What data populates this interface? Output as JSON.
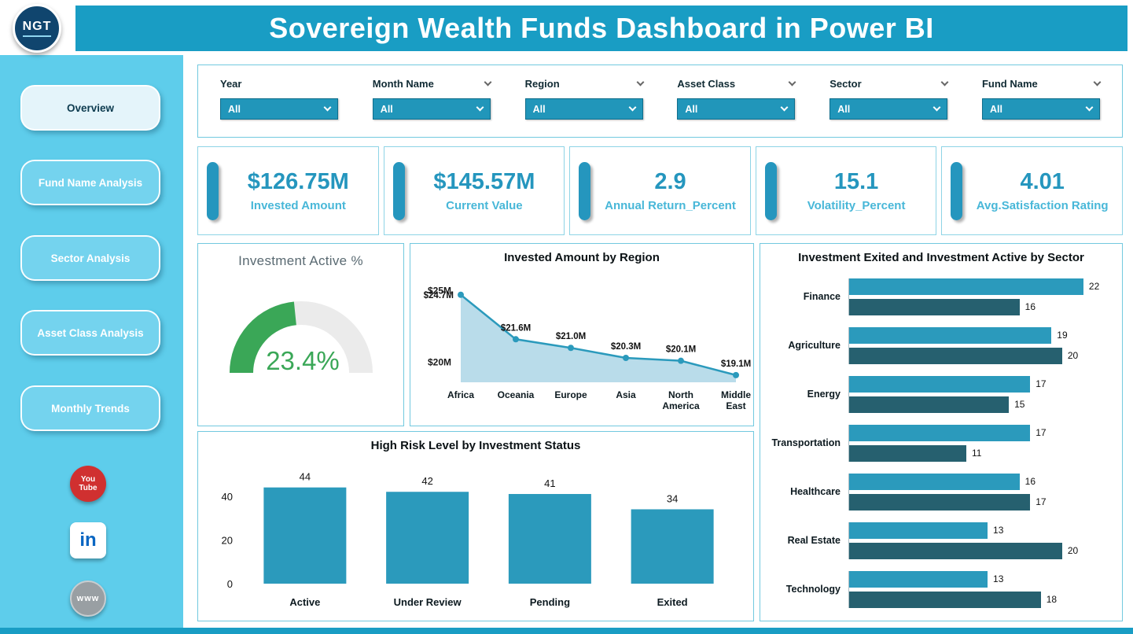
{
  "header": {
    "title": "Sovereign Wealth Funds Dashboard in Power BI",
    "logo": "NGT"
  },
  "sidebar": {
    "items": [
      {
        "label": "Overview",
        "active": true
      },
      {
        "label": "Fund Name Analysis",
        "active": false
      },
      {
        "label": "Sector Analysis",
        "active": false
      },
      {
        "label": "Asset Class Analysis",
        "active": false
      },
      {
        "label": "Monthly Trends",
        "active": false
      }
    ],
    "social": [
      {
        "name": "youtube",
        "lines": [
          "You",
          "Tube"
        ]
      },
      {
        "name": "linkedin",
        "text": "in"
      },
      {
        "name": "www",
        "text": "www"
      }
    ]
  },
  "filters": {
    "items": [
      {
        "label": "Year",
        "value": "All"
      },
      {
        "label": "Month Name",
        "value": "All"
      },
      {
        "label": "Region",
        "value": "All"
      },
      {
        "label": "Asset Class",
        "value": "All"
      },
      {
        "label": "Sector",
        "value": "All"
      },
      {
        "label": "Fund Name",
        "value": "All"
      }
    ]
  },
  "kpis": [
    {
      "value": "$126.75M",
      "label": "Invested Amount"
    },
    {
      "value": "$145.57M",
      "label": "Current Value"
    },
    {
      "value": "2.9",
      "label": "Annual Return_Percent"
    },
    {
      "value": "15.1",
      "label": "Volatility_Percent"
    },
    {
      "value": "4.01",
      "label": "Avg.Satisfaction Rating"
    }
  ],
  "colors": {
    "header_teal": "#199dc4",
    "sidebar_blue": "#5ecdeb",
    "accent_teal": "#2b9abc",
    "kpi_teal": "#2596be",
    "dark_teal": "#26606f",
    "gauge_green": "#3aa757"
  },
  "chart_data": [
    {
      "type": "gauge",
      "title": "Investment Active %",
      "value": 23.4,
      "display": "23.4%",
      "arc_color": "#3aa757",
      "track_color": "#ebebeb"
    },
    {
      "type": "area",
      "title": "Invested Amount by Region",
      "categories": [
        "Africa",
        "Oceania",
        "Europe",
        "Asia",
        "North America",
        "Middle East"
      ],
      "values": [
        24.7,
        21.6,
        21.0,
        20.3,
        20.1,
        19.1
      ],
      "point_labels": [
        "$24.7M",
        "$21.6M",
        "$21.0M",
        "$20.3M",
        "$20.1M",
        "$19.1M"
      ],
      "y_ticks": [
        {
          "label": "$25M",
          "value": 25
        },
        {
          "label": "$20M",
          "value": 20
        }
      ],
      "ylim": [
        18.6,
        25.4
      ],
      "line_color": "#2b9abc",
      "fill_color": "#b9dcea"
    },
    {
      "type": "bar",
      "title": "High Risk Level by Investment Status",
      "categories": [
        "Active",
        "Under Review",
        "Pending",
        "Exited"
      ],
      "values": [
        44,
        42,
        41,
        34
      ],
      "y_ticks": [
        0,
        20,
        40
      ],
      "ylim": [
        0,
        50
      ],
      "bar_color": "#2b9abc"
    },
    {
      "type": "hbar",
      "title": "Investment Exited and Investment Active by Sector",
      "categories": [
        "Finance",
        "Agriculture",
        "Energy",
        "Transportation",
        "Healthcare",
        "Real Estate",
        "Technology"
      ],
      "series": [
        {
          "name": "Investment Exited",
          "color": "#2b9abc",
          "values": [
            22,
            19,
            17,
            17,
            16,
            13,
            13
          ]
        },
        {
          "name": "Investment Active",
          "color": "#26606f",
          "values": [
            16,
            20,
            15,
            11,
            17,
            20,
            18
          ]
        }
      ],
      "xmax": 22
    }
  ]
}
